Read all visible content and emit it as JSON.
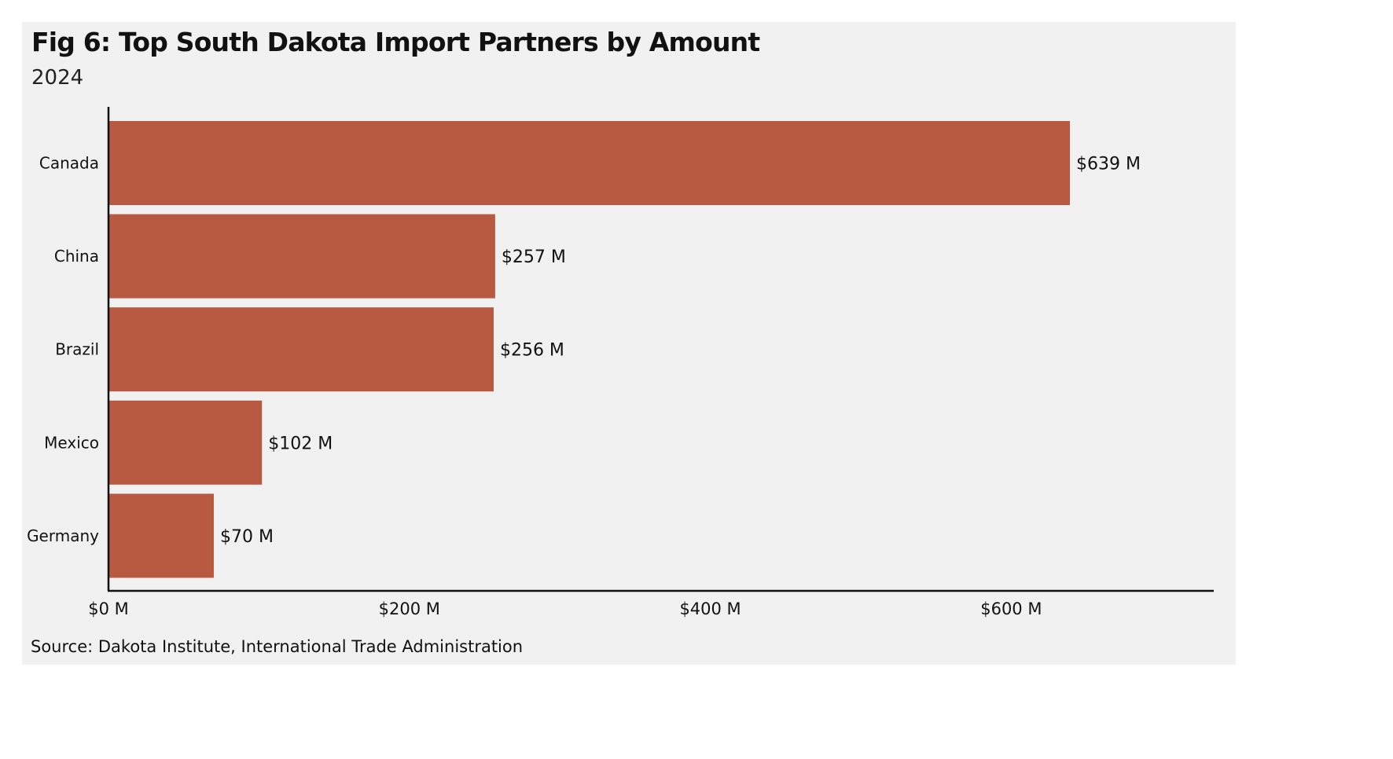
{
  "chart_data": {
    "type": "bar",
    "orientation": "horizontal",
    "title": "Fig 6: Top South Dakota Import Partners by Amount",
    "subtitle": "2024",
    "categories": [
      "Canada",
      "China",
      "Brazil",
      "Mexico",
      "Germany"
    ],
    "values": [
      639,
      257,
      256,
      102,
      70
    ],
    "value_labels": [
      "$639 M",
      "$257 M",
      "$256 M",
      "$102 M",
      "$70 M"
    ],
    "x_ticks": [
      0,
      200,
      400,
      600
    ],
    "x_tick_labels": [
      "$0 M",
      "$200 M",
      "$400 M",
      "$600 M"
    ],
    "xlim": [
      0,
      735
    ],
    "xlabel": "",
    "ylabel": "",
    "grid": false,
    "bar_color": "#b85a42",
    "source": "Source: Dakota Institute, International Trade Administration"
  }
}
